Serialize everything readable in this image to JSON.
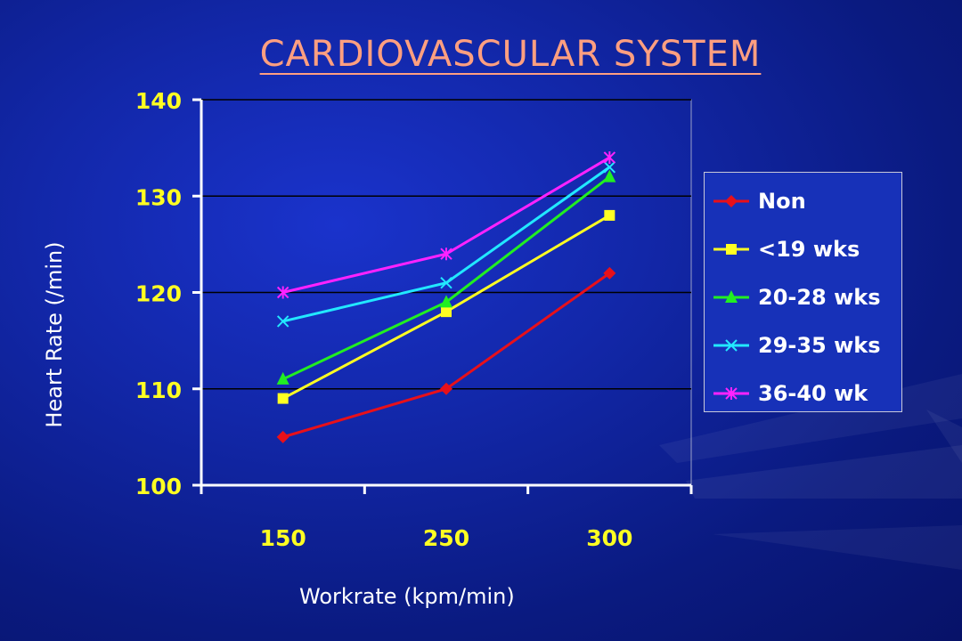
{
  "slide": {
    "title": "CARDIOVASCULAR SYSTEM"
  },
  "chart_data": {
    "type": "line",
    "title": "",
    "xlabel": "Workrate (kpm/min)",
    "ylabel": "Heart Rate (/min)",
    "categories": [
      "150",
      "250",
      "300"
    ],
    "ylim": [
      100,
      140
    ],
    "yticks": [
      "100",
      "110",
      "120",
      "130",
      "140"
    ],
    "grid": true,
    "legend_position": "right",
    "series": [
      {
        "name": "Non",
        "values": [
          105,
          110,
          122
        ],
        "color": "#e8101a",
        "marker": "diamond"
      },
      {
        "name": "<19 wks",
        "values": [
          109,
          118,
          128
        ],
        "color": "#ffff22",
        "marker": "square"
      },
      {
        "name": "20-28 wks",
        "values": [
          111,
          119,
          132
        ],
        "color": "#22ee22",
        "marker": "triangle"
      },
      {
        "name": "29-35 wks",
        "values": [
          117,
          121,
          133
        ],
        "color": "#22e8ff",
        "marker": "x"
      },
      {
        "name": "36-40 wk",
        "values": [
          120,
          124,
          134
        ],
        "color": "#ff22ff",
        "marker": "star"
      }
    ]
  }
}
